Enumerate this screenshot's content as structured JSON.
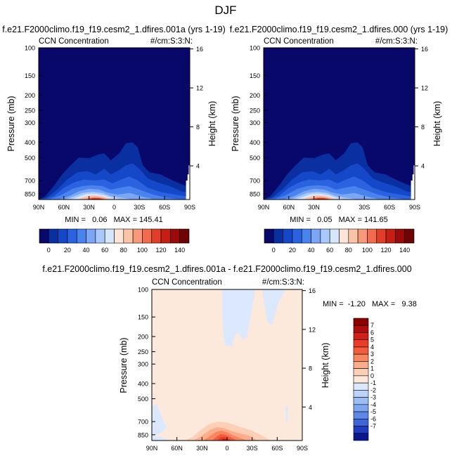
{
  "page": {
    "title": "DJF"
  },
  "panels": [
    {
      "title": "f.e21.F2000climo.f19_f19.cesm2_1.dfires.001a (yrs 1-19)",
      "subtitle_left": "CCN Concentration",
      "subtitle_right": "#/cm:S:3:N:",
      "ylabel": "Pressure (mb)",
      "y2label": "Height (km)",
      "stats": "MIN =   0.06   MAX = 145.41"
    },
    {
      "title": "f.e21.F2000climo.f19_f19.cesm2_1.dfires.000 (yrs 1-19)",
      "subtitle_left": "CCN Concentration",
      "subtitle_right": "#/cm:S:3:N:",
      "ylabel": "Pressure (mb)",
      "y2label": "Height (km)",
      "stats": "MIN =   0.05   MAX = 141.65"
    },
    {
      "title": "f.e21.F2000climo.f19_f19.cesm2_1.dfires.001a - f.e21.F2000climo.f19_f19.cesm2_1.dfires.000",
      "subtitle_left": "CCN Concentration",
      "subtitle_right": "#/cm:S:3:N:",
      "ylabel": "Pressure (mb)",
      "y2label": "Height (km)",
      "stats": "MIN =  -1.20   MAX =   9.38"
    }
  ],
  "axes": {
    "x_ticks": [
      "90N",
      "60N",
      "30N",
      "0",
      "30S",
      "60S",
      "90S"
    ],
    "y_ticks": [
      "100",
      "150",
      "200",
      "250",
      "300",
      "400",
      "500",
      "700",
      "850"
    ],
    "y_tick_values": [
      100,
      150,
      200,
      250,
      300,
      400,
      500,
      700,
      850
    ],
    "y2_ticks": [
      "16",
      "12",
      "8",
      "4"
    ],
    "y2_tick_values": [
      16,
      12,
      8,
      4
    ],
    "y_scale": "log",
    "ylim": [
      100,
      925
    ]
  },
  "colorbar_abs": {
    "labels": [
      "0",
      "20",
      "40",
      "60",
      "80",
      "100",
      "120",
      "140"
    ],
    "colors": [
      "#08086b",
      "#0a2fa0",
      "#1448c8",
      "#2a62e0",
      "#4a82ee",
      "#7aa6f6",
      "#a9c8fb",
      "#d6e6fd",
      "#fde6d8",
      "#fbc4a8",
      "#f89a78",
      "#f26b4a",
      "#e03e28",
      "#c41f14",
      "#9a0a08",
      "#6e0404"
    ]
  },
  "colorbar_diff": {
    "labels": [
      "7",
      "6",
      "5",
      "4",
      "3",
      "2",
      "1",
      "0",
      "-1",
      "-2",
      "-3",
      "-4",
      "-5",
      "-6",
      "-7"
    ],
    "colors": [
      "#8b0000",
      "#b00c0c",
      "#d41e18",
      "#ea3c28",
      "#f25c3c",
      "#f88660",
      "#fbad8c",
      "#fdd0b6",
      "#fde8da",
      "#dbe8fd",
      "#bcd4fa",
      "#9bbcf5",
      "#7da6f0",
      "#5c88e8",
      "#3c66d8",
      "#1e3cc0",
      "#0a1890"
    ]
  },
  "chart_data": [
    {
      "type": "heatmap",
      "title": "f.e21.F2000climo.f19_f19.cesm2_1.dfires.001a (yrs 1-19)",
      "variable": "CCN Concentration",
      "units": "#/cm:S:3:N:",
      "x": [
        90,
        60,
        30,
        0,
        -30,
        -60,
        -90
      ],
      "x_tick_labels": [
        "90N",
        "60N",
        "30N",
        "0",
        "30S",
        "60S",
        "90S"
      ],
      "xlabel": "",
      "ylabel": "Pressure (mb)",
      "y2label": "Height (km)",
      "y_scale": "log",
      "ylim": [
        100,
        925
      ],
      "levels": [
        10,
        20,
        30,
        40,
        50,
        60,
        70,
        80,
        90,
        100,
        110,
        120,
        130,
        140
      ],
      "min": 0.06,
      "max": 145.41
    },
    {
      "type": "heatmap",
      "title": "f.e21.F2000climo.f19_f19.cesm2_1.dfires.000 (yrs 1-19)",
      "variable": "CCN Concentration",
      "units": "#/cm:S:3:N:",
      "x": [
        90,
        60,
        30,
        0,
        -30,
        -60,
        -90
      ],
      "x_tick_labels": [
        "90N",
        "60N",
        "30N",
        "0",
        "30S",
        "60S",
        "90S"
      ],
      "xlabel": "",
      "ylabel": "Pressure (mb)",
      "y2label": "Height (km)",
      "y_scale": "log",
      "ylim": [
        100,
        925
      ],
      "levels": [
        10,
        20,
        30,
        40,
        50,
        60,
        70,
        80,
        90,
        100,
        110,
        120,
        130,
        140
      ],
      "min": 0.05,
      "max": 141.65
    },
    {
      "type": "heatmap",
      "title": "f.e21.F2000climo.f19_f19.cesm2_1.dfires.001a - f.e21.F2000climo.f19_f19.cesm2_1.dfires.000",
      "variable": "CCN Concentration",
      "units": "#/cm:S:3:N:",
      "x": [
        90,
        60,
        30,
        0,
        -30,
        -60,
        -90
      ],
      "x_tick_labels": [
        "90N",
        "60N",
        "30N",
        "0",
        "30S",
        "60S",
        "90S"
      ],
      "xlabel": "",
      "ylabel": "Pressure (mb)",
      "y2label": "Height (km)",
      "y_scale": "log",
      "ylim": [
        100,
        925
      ],
      "levels": [
        -7,
        -6,
        -5,
        -4,
        -3,
        -2,
        -1,
        0,
        1,
        2,
        3,
        4,
        5,
        6,
        7
      ],
      "min": -1.2,
      "max": 9.38
    }
  ]
}
